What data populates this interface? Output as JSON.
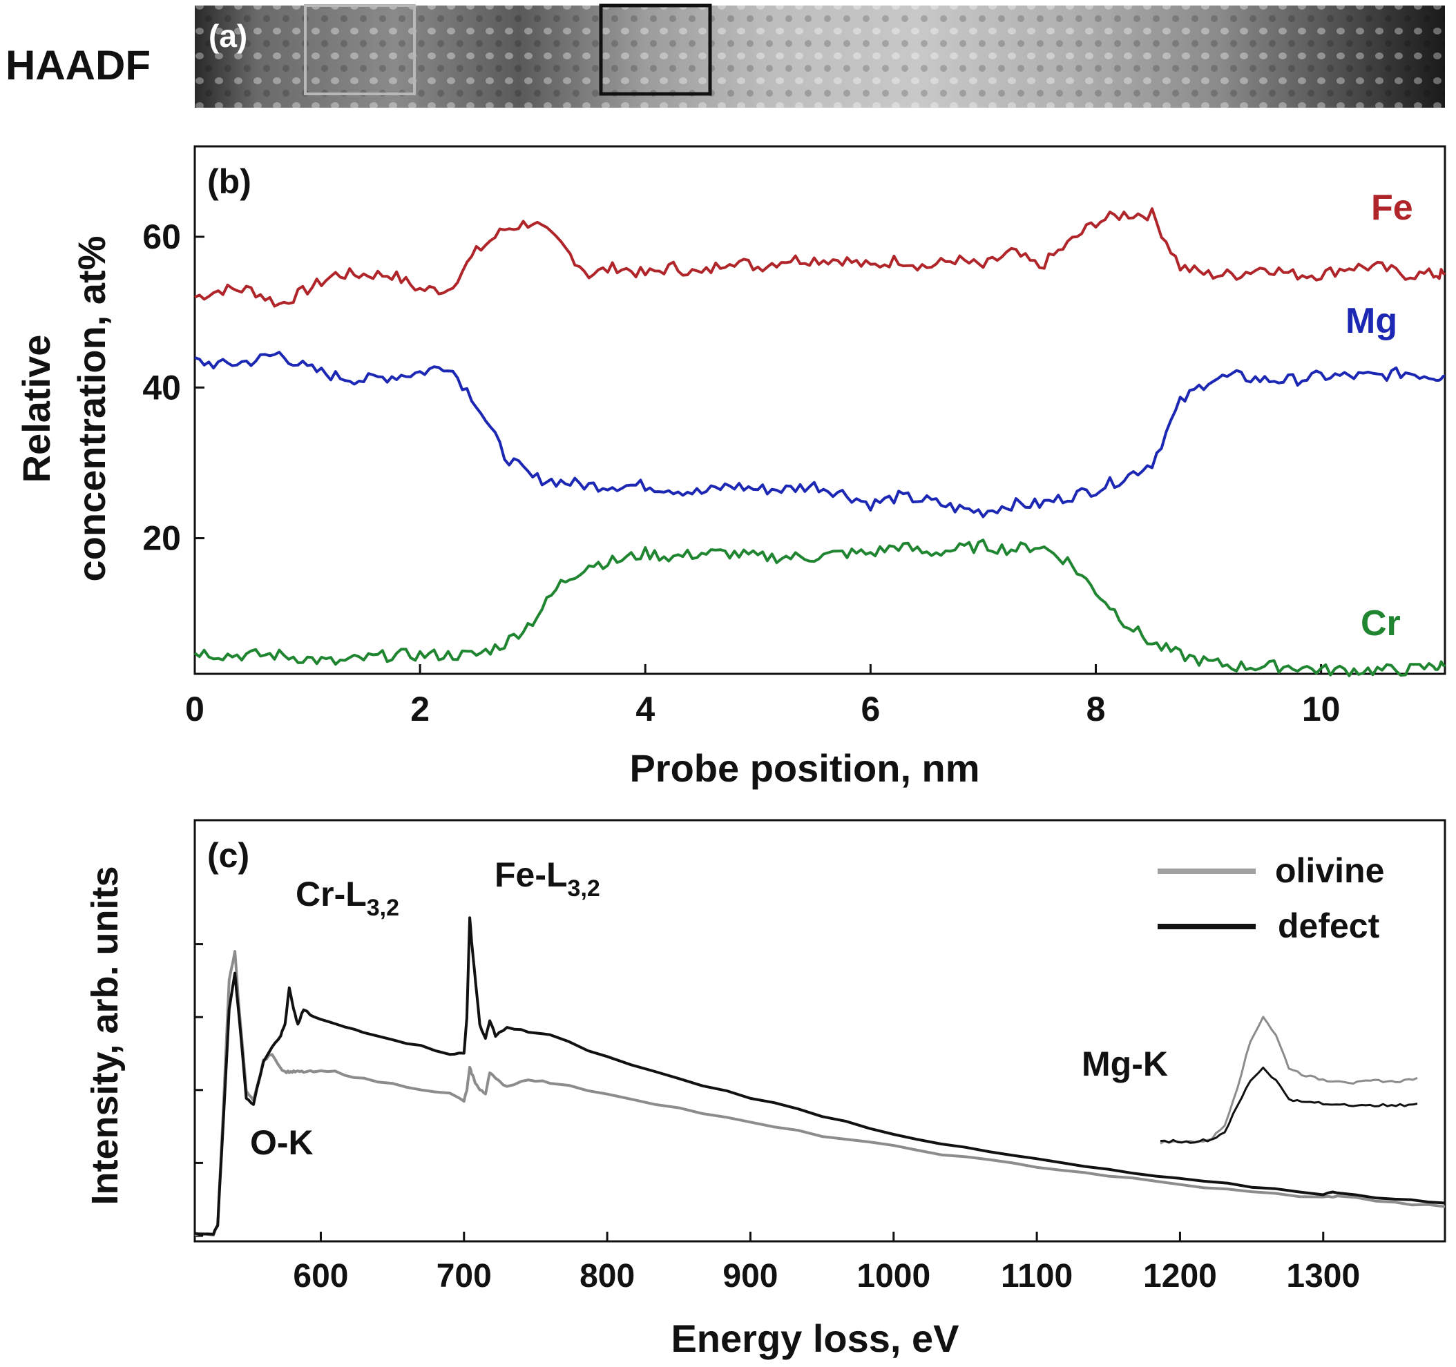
{
  "panel_a": {
    "side_label": "HAADF",
    "panel_label": "(a)"
  },
  "chart_data": [
    {
      "type": "line",
      "panel_label": "(b)",
      "title": "",
      "xlabel": "Probe position, nm",
      "ylabel_line1": "Relative",
      "ylabel_line2": "concentration, at%",
      "xlim": [
        0,
        11.1
      ],
      "ylim": [
        2,
        72
      ],
      "xticks": [
        0,
        2,
        4,
        6,
        8,
        10
      ],
      "yticks": [
        20,
        40,
        60
      ],
      "x": [
        0,
        0.25,
        0.5,
        0.75,
        1,
        1.25,
        1.5,
        1.75,
        2,
        2.25,
        2.5,
        2.75,
        3,
        3.25,
        3.5,
        3.75,
        4,
        4.25,
        4.5,
        4.75,
        5,
        5.25,
        5.5,
        5.75,
        6,
        6.25,
        6.5,
        6.75,
        7,
        7.25,
        7.5,
        7.75,
        8,
        8.25,
        8.5,
        8.75,
        9,
        9.25,
        9.5,
        9.75,
        10,
        10.25,
        10.5,
        10.75,
        11,
        11.1
      ],
      "series": [
        {
          "name": "Fe",
          "color": "#b0252a",
          "values": [
            52,
            53,
            53,
            51,
            53,
            55,
            55,
            55,
            53,
            53,
            58,
            61,
            62,
            59,
            55,
            56,
            55,
            56,
            55,
            57,
            56,
            57,
            57,
            57,
            56,
            57,
            56,
            57,
            56,
            58,
            56,
            59,
            62,
            63,
            63,
            56,
            55,
            55,
            56,
            55,
            55,
            56,
            56,
            55,
            55,
            55
          ]
        },
        {
          "name": "Mg",
          "color": "#1c28b4",
          "values": [
            43.5,
            43,
            43.5,
            44.5,
            42.5,
            41.5,
            41,
            41.5,
            42,
            43,
            38,
            31,
            28,
            27.5,
            27,
            27,
            27,
            26.5,
            26,
            27,
            26.5,
            26.5,
            27,
            26,
            24.5,
            25.5,
            25,
            24,
            23.5,
            24.5,
            24.5,
            25.5,
            26.5,
            28,
            30,
            38,
            41,
            41.5,
            41,
            41,
            41.5,
            41.5,
            41.5,
            42,
            41.5,
            41.5
          ]
        },
        {
          "name": "Cr",
          "color": "#208530",
          "values": [
            5,
            4.5,
            4.5,
            4.5,
            4,
            3.5,
            4,
            4.5,
            4.5,
            4.5,
            4.5,
            6,
            9,
            14,
            16.5,
            17,
            18,
            17.5,
            18,
            18,
            17.5,
            17.5,
            17.5,
            18,
            18,
            19,
            18,
            18.5,
            19,
            18.5,
            19,
            17,
            13,
            9,
            6,
            4.5,
            3.5,
            3,
            3,
            3,
            2.5,
            2.5,
            2.5,
            2.5,
            3,
            3
          ]
        }
      ],
      "legend": [
        "Fe",
        "Mg",
        "Cr"
      ]
    },
    {
      "type": "line",
      "panel_label": "(c)",
      "title": "",
      "xlabel": "Energy loss, eV",
      "ylabel": "Intensity, arb. units",
      "xlim": [
        512,
        1385
      ],
      "ylim": [
        0,
        1
      ],
      "xticks": [
        600,
        700,
        800,
        900,
        1000,
        1100,
        1200,
        1300
      ],
      "x": [
        512,
        525,
        528,
        532,
        536,
        540,
        543,
        548,
        553,
        560,
        566,
        572,
        575,
        578,
        581,
        584,
        588,
        595,
        610,
        630,
        660,
        690,
        700,
        702,
        704,
        706,
        708,
        711,
        715,
        718,
        722,
        730,
        745,
        760,
        800,
        850,
        900,
        950,
        1000,
        1050,
        1100,
        1150,
        1200,
        1250,
        1300,
        1310,
        1350,
        1385
      ],
      "series": [
        {
          "name": "olivine",
          "color": "#8c8c8c",
          "values": [
            0.005,
            0.005,
            0.03,
            0.35,
            0.7,
            0.78,
            0.62,
            0.4,
            0.37,
            0.48,
            0.5,
            0.46,
            0.45,
            0.45,
            0.45,
            0.45,
            0.45,
            0.45,
            0.45,
            0.43,
            0.41,
            0.39,
            0.37,
            0.4,
            0.46,
            0.44,
            0.42,
            0.4,
            0.39,
            0.45,
            0.43,
            0.41,
            0.43,
            0.42,
            0.39,
            0.35,
            0.31,
            0.275,
            0.245,
            0.215,
            0.19,
            0.165,
            0.14,
            0.12,
            0.105,
            0.11,
            0.09,
            0.08
          ]
        },
        {
          "name": "defect",
          "color": "#111111",
          "values": [
            0.005,
            0.005,
            0.03,
            0.32,
            0.62,
            0.72,
            0.6,
            0.38,
            0.36,
            0.48,
            0.52,
            0.55,
            0.58,
            0.68,
            0.62,
            0.58,
            0.62,
            0.6,
            0.58,
            0.56,
            0.53,
            0.5,
            0.5,
            0.6,
            0.87,
            0.78,
            0.7,
            0.58,
            0.54,
            0.59,
            0.55,
            0.57,
            0.56,
            0.55,
            0.49,
            0.43,
            0.38,
            0.33,
            0.28,
            0.24,
            0.21,
            0.18,
            0.155,
            0.135,
            0.115,
            0.12,
            0.1,
            0.09
          ]
        }
      ],
      "legend": [
        "olivine",
        "defect"
      ],
      "annotations": [
        {
          "text": "O-K"
        },
        {
          "text": "Cr-L",
          "sub": "3,2"
        },
        {
          "text": "Fe-L",
          "sub": "3,2"
        },
        {
          "text": "Mg-K"
        }
      ],
      "inset_mgk": {
        "x": [
          0,
          0.05,
          0.1,
          0.15,
          0.2,
          0.25,
          0.3,
          0.35,
          0.4,
          0.45,
          0.5,
          0.55,
          0.6,
          0.65,
          0.7,
          0.75,
          0.8,
          0.85,
          0.9,
          0.95,
          1.0
        ],
        "series": [
          {
            "name": "olivine",
            "color": "#8c8c8c",
            "values": [
              0.02,
              0.02,
              0.03,
              0.02,
              0.05,
              0.15,
              0.45,
              0.8,
              1.0,
              0.85,
              0.6,
              0.55,
              0.52,
              0.5,
              0.5,
              0.48,
              0.49,
              0.5,
              0.49,
              0.5,
              0.52
            ]
          },
          {
            "name": "defect",
            "color": "#111111",
            "values": [
              0.02,
              0.03,
              0.02,
              0.03,
              0.04,
              0.1,
              0.3,
              0.5,
              0.6,
              0.5,
              0.36,
              0.33,
              0.33,
              0.31,
              0.32,
              0.31,
              0.3,
              0.31,
              0.3,
              0.31,
              0.32
            ]
          }
        ]
      }
    }
  ]
}
